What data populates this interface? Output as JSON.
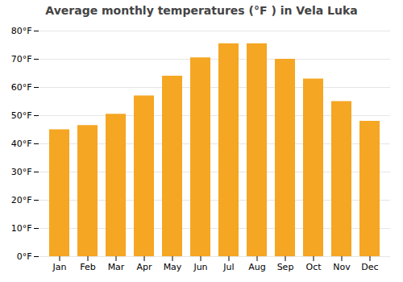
{
  "chart_data": {
    "type": "bar",
    "title": "Average monthly temperatures (°F ) in Vela Luka",
    "categories": [
      "Jan",
      "Feb",
      "Mar",
      "Apr",
      "May",
      "Jun",
      "Jul",
      "Aug",
      "Sep",
      "Oct",
      "Nov",
      "Dec"
    ],
    "values": [
      45,
      46.5,
      50.5,
      57,
      64,
      70.5,
      75.5,
      75.5,
      70,
      63,
      55,
      48
    ],
    "color": "#F5A623",
    "ylim": [
      0,
      80
    ],
    "yticks": [
      {
        "value": 0,
        "label": "0°F"
      },
      {
        "value": 10,
        "label": "10°F"
      },
      {
        "value": 20,
        "label": "20°F"
      },
      {
        "value": 30,
        "label": "30°F"
      },
      {
        "value": 40,
        "label": "40°F"
      },
      {
        "value": 50,
        "label": "50°F"
      },
      {
        "value": 60,
        "label": "60°F"
      },
      {
        "value": 70,
        "label": "70°F"
      },
      {
        "value": 80,
        "label": "80°F"
      }
    ],
    "grid": true
  }
}
